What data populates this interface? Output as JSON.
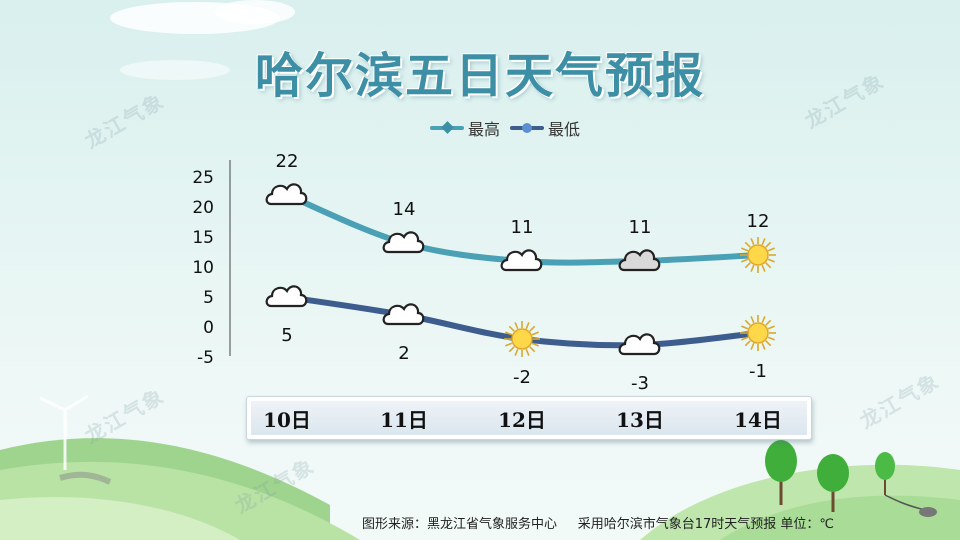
{
  "title": "哈尔滨五日天气预报",
  "legend": {
    "high": "最高",
    "low": "最低"
  },
  "colors": {
    "high": "#4aa0b5",
    "low": "#3e5d8f",
    "title": "#3d8fa5"
  },
  "watermark": "龙江气象",
  "footer": {
    "source": "图形来源：黑龙江省气象服务中心",
    "note": "采用哈尔滨市气象台17时天气预报 单位：℃"
  },
  "chart_data": {
    "type": "line",
    "categories": [
      "10日",
      "11日",
      "12日",
      "13日",
      "14日"
    ],
    "ylim": [
      -5,
      25
    ],
    "yticks": [
      25,
      20,
      15,
      10,
      5,
      0,
      -5
    ],
    "series": [
      {
        "name": "最高",
        "values": [
          22,
          14,
          11,
          11,
          12
        ],
        "icons": [
          "cloud-icon",
          "cloud-icon",
          "cloud-icon",
          "overcast-icon",
          "sun-icon"
        ]
      },
      {
        "name": "最低",
        "values": [
          5,
          2,
          -2,
          -3,
          -1
        ],
        "icons": [
          "cloud-icon",
          "cloud-icon",
          "sun-icon",
          "cloud-icon",
          "sun-icon"
        ]
      }
    ],
    "legend_position": "top"
  }
}
